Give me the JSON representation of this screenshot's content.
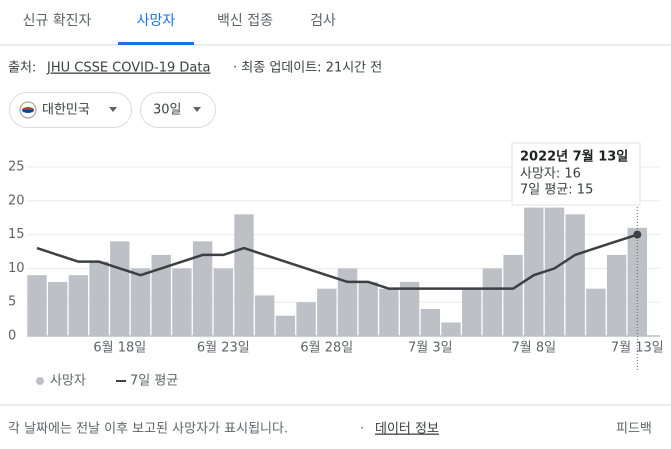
{
  "tabs": [
    "신규 확진자",
    "사망자",
    "백신 접종",
    "검사"
  ],
  "source": {
    "prefix": "출처:",
    "link": "JHU CSSE COVID-19 Data",
    "updated": "· 최종 업데이트: 21시간 전"
  },
  "filters": [
    "대한민국",
    "30일"
  ],
  "tooltip": {
    "date": "2022년 7월 13일",
    "lines": [
      "사망자: 16",
      "7일 평균: 15"
    ]
  },
  "footer": {
    "note": "각 날짜에는 전날 이후 보고된 사망자가 표시됩니다.",
    "separator": "·",
    "link": "데이터 정보",
    "feedback": "피드백"
  },
  "chart_data": {
    "type": "bar",
    "categories": [
      null,
      null,
      null,
      null,
      "6월 18일",
      null,
      null,
      null,
      null,
      "6월 23일",
      null,
      null,
      null,
      null,
      "6월 28일",
      null,
      null,
      null,
      null,
      "7월 3일",
      null,
      null,
      null,
      null,
      "7월 8일",
      null,
      null,
      null,
      null,
      "7월 13일"
    ],
    "series": [
      {
        "name": "사망자",
        "type": "bar",
        "color": "#bdc1c6",
        "values": [
          9,
          8,
          9,
          11,
          14,
          10,
          12,
          10,
          14,
          10,
          18,
          6,
          3,
          5,
          7,
          10,
          8,
          7,
          8,
          4,
          2,
          7,
          10,
          12,
          19,
          19,
          18,
          7,
          12,
          16
        ]
      },
      {
        "name": "7일 평균",
        "type": "line",
        "color": "#3c4043",
        "values": [
          13,
          12,
          11,
          11,
          10,
          9,
          10,
          11,
          12,
          12,
          13,
          12,
          11,
          10,
          9,
          8,
          8,
          7,
          7,
          7,
          7,
          7,
          7,
          7,
          9,
          10,
          12,
          13,
          14,
          15
        ]
      }
    ],
    "ylim": [
      0,
      25
    ],
    "yticks": [
      0,
      5,
      10,
      15,
      20,
      25
    ],
    "grid": true
  }
}
